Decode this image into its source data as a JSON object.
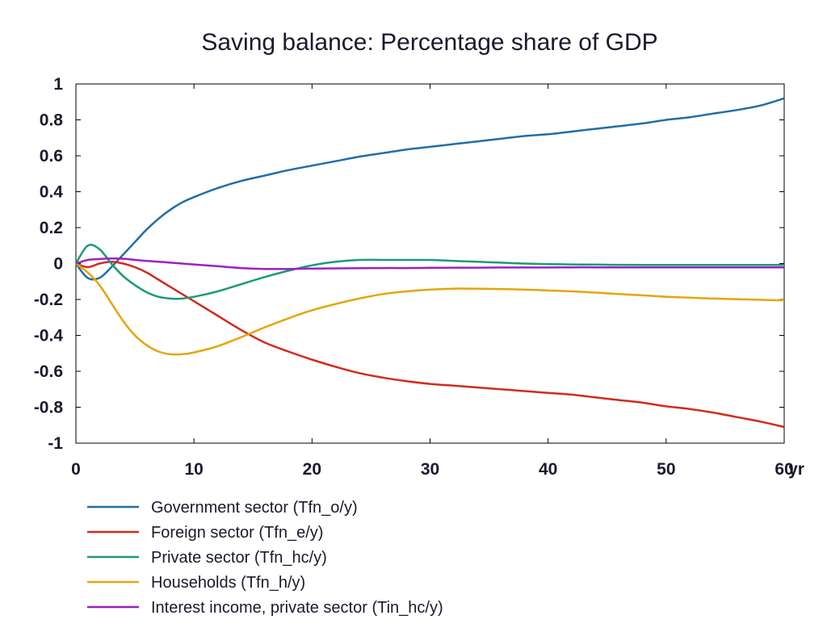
{
  "chart_data": {
    "type": "line",
    "title": "Saving balance: Percentage share of GDP",
    "xlabel": "",
    "ylabel": "",
    "x_unit_label": "yr",
    "xlim": [
      0,
      60
    ],
    "ylim": [
      -1,
      1
    ],
    "x_ticks": [
      0,
      10,
      20,
      30,
      40,
      50,
      60
    ],
    "x_tick_labels": [
      "0",
      "10",
      "20",
      "30",
      "40",
      "50",
      "60"
    ],
    "y_ticks": [
      1,
      0.8,
      0.6,
      0.4,
      0.2,
      0,
      -0.2,
      -0.4,
      -0.6,
      -0.8,
      -1
    ],
    "y_tick_labels": [
      "1",
      "0.8",
      "0.6",
      "0.4",
      "0.2",
      "0",
      "-0.2",
      "-0.4",
      "-0.6",
      "-0.8",
      "-1"
    ],
    "grid": false,
    "legend_position": "bottom-left",
    "x": [
      0,
      1,
      2,
      3,
      4,
      5,
      6,
      7,
      8,
      9,
      10,
      12,
      14,
      16,
      18,
      20,
      22,
      24,
      26,
      28,
      30,
      32,
      34,
      36,
      38,
      40,
      42,
      44,
      46,
      48,
      50,
      52,
      54,
      56,
      58,
      60
    ],
    "series": [
      {
        "name": "Government sector (Tfn_o/y)",
        "color": "#1f6ea8",
        "values": [
          0,
          -0.08,
          -0.08,
          -0.02,
          0.05,
          0.12,
          0.19,
          0.25,
          0.3,
          0.34,
          0.37,
          0.42,
          0.46,
          0.49,
          0.52,
          0.545,
          0.57,
          0.595,
          0.615,
          0.635,
          0.65,
          0.665,
          0.68,
          0.695,
          0.71,
          0.72,
          0.735,
          0.75,
          0.765,
          0.78,
          0.8,
          0.815,
          0.835,
          0.855,
          0.88,
          0.92
        ]
      },
      {
        "name": "Foreign sector (Tfn_e/y)",
        "color": "#d42a1e",
        "values": [
          0,
          -0.02,
          0.0,
          0.01,
          0.0,
          -0.02,
          -0.05,
          -0.09,
          -0.13,
          -0.17,
          -0.21,
          -0.29,
          -0.37,
          -0.44,
          -0.49,
          -0.535,
          -0.575,
          -0.61,
          -0.635,
          -0.655,
          -0.67,
          -0.68,
          -0.69,
          -0.7,
          -0.71,
          -0.72,
          -0.73,
          -0.745,
          -0.76,
          -0.775,
          -0.795,
          -0.81,
          -0.83,
          -0.855,
          -0.88,
          -0.91
        ]
      },
      {
        "name": "Private sector (Tfn_hc/y)",
        "color": "#1b9a7a",
        "values": [
          0,
          0.1,
          0.08,
          0.0,
          -0.07,
          -0.12,
          -0.16,
          -0.185,
          -0.195,
          -0.195,
          -0.185,
          -0.155,
          -0.115,
          -0.075,
          -0.04,
          -0.01,
          0.01,
          0.02,
          0.02,
          0.02,
          0.02,
          0.015,
          0.01,
          0.005,
          0.0,
          -0.003,
          -0.005,
          -0.006,
          -0.007,
          -0.008,
          -0.008,
          -0.008,
          -0.008,
          -0.008,
          -0.008,
          -0.008
        ]
      },
      {
        "name": "Households (Tfn_h/y)",
        "color": "#e5a50a",
        "values": [
          0,
          -0.05,
          -0.12,
          -0.22,
          -0.32,
          -0.4,
          -0.455,
          -0.49,
          -0.505,
          -0.505,
          -0.495,
          -0.46,
          -0.41,
          -0.355,
          -0.305,
          -0.26,
          -0.225,
          -0.195,
          -0.17,
          -0.155,
          -0.145,
          -0.14,
          -0.14,
          -0.142,
          -0.145,
          -0.15,
          -0.155,
          -0.162,
          -0.17,
          -0.177,
          -0.185,
          -0.19,
          -0.195,
          -0.198,
          -0.202,
          -0.205
        ]
      },
      {
        "name": "Interest income, private sector (Tin_hc/y)",
        "color": "#9b22c2",
        "values": [
          0,
          0.02,
          0.025,
          0.028,
          0.027,
          0.02,
          0.015,
          0.01,
          0.005,
          0.0,
          -0.005,
          -0.015,
          -0.025,
          -0.03,
          -0.03,
          -0.028,
          -0.027,
          -0.026,
          -0.025,
          -0.025,
          -0.024,
          -0.023,
          -0.023,
          -0.022,
          -0.022,
          -0.022,
          -0.021,
          -0.021,
          -0.021,
          -0.021,
          -0.021,
          -0.021,
          -0.021,
          -0.021,
          -0.021,
          -0.021
        ]
      }
    ]
  }
}
